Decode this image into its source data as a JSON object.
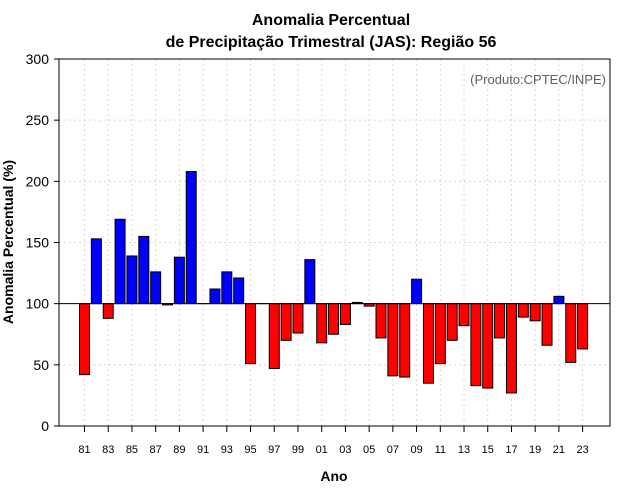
{
  "chart_data": {
    "type": "bar",
    "title_line1": "Anomalia Percentual",
    "title_line2": "de Precipitação Trimestral (JAS): Região 56",
    "xlabel": "Ano",
    "ylabel": "Anomalia Percentual (%)",
    "credit": "(Produto:CPTEC/INPE)",
    "baseline": 100,
    "ylim": [
      0,
      300
    ],
    "yticks": [
      0,
      50,
      100,
      150,
      200,
      250,
      300
    ],
    "ytick_labels": [
      "0",
      "50",
      "100",
      "150",
      "200",
      "250",
      "300"
    ],
    "categories": [
      "81",
      "82",
      "83",
      "84",
      "85",
      "86",
      "87",
      "88",
      "89",
      "90",
      "91",
      "92",
      "93",
      "94",
      "95",
      "96",
      "97",
      "98",
      "99",
      "00",
      "01",
      "02",
      "03",
      "04",
      "05",
      "06",
      "07",
      "08",
      "09",
      "10",
      "11",
      "12",
      "13",
      "14",
      "15",
      "16",
      "17",
      "18",
      "19",
      "20",
      "21",
      "22",
      "23"
    ],
    "xtick_labels": [
      "81",
      "83",
      "85",
      "87",
      "89",
      "91",
      "93",
      "95",
      "97",
      "99",
      "01",
      "03",
      "05",
      "07",
      "09",
      "11",
      "13",
      "15",
      "17",
      "19",
      "21",
      "23"
    ],
    "values": [
      42,
      153,
      88,
      169,
      139,
      155,
      126,
      99,
      138,
      208,
      100,
      112,
      126,
      121,
      51,
      100,
      47,
      70,
      76,
      136,
      68,
      75,
      83,
      101,
      98,
      72,
      41,
      40,
      120,
      35,
      51,
      70,
      82,
      33,
      31,
      72,
      27,
      89,
      86,
      66,
      106,
      52,
      63
    ],
    "colors": {
      "above": "#0000ff",
      "below": "#ff0000",
      "grid": "#d8d8d8"
    }
  }
}
